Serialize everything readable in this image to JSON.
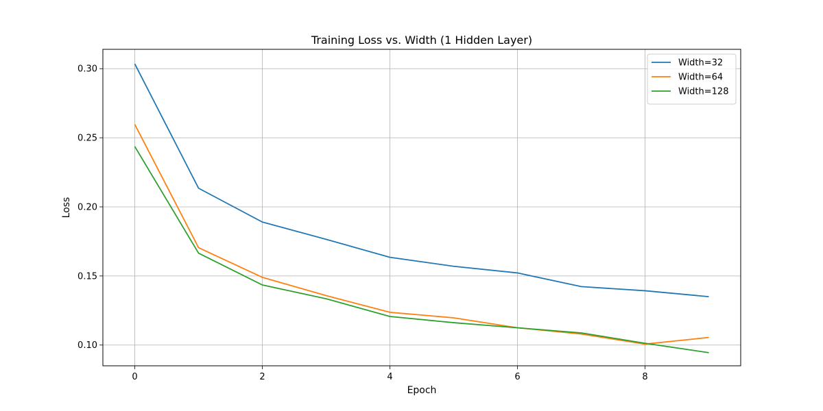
{
  "chart_data": {
    "type": "line",
    "title": "Training Loss vs. Width (1 Hidden Layer)",
    "xlabel": "Epoch",
    "ylabel": "Loss",
    "xlim": [
      -0.5,
      9.5
    ],
    "ylim": [
      0.085,
      0.314
    ],
    "xticks": [
      0,
      2,
      4,
      6,
      8
    ],
    "xtick_labels": [
      "0",
      "2",
      "4",
      "6",
      "8"
    ],
    "yticks": [
      0.1,
      0.15,
      0.2,
      0.25,
      0.3
    ],
    "ytick_labels": [
      "0.10",
      "0.15",
      "0.20",
      "0.25",
      "0.30"
    ],
    "grid": true,
    "legend_position": "top-right",
    "x": [
      0,
      1,
      2,
      3,
      4,
      5,
      6,
      7,
      8,
      9
    ],
    "series": [
      {
        "name": "Width=32",
        "color": "#1f77b4",
        "values": [
          0.3035,
          0.2135,
          0.189,
          0.1765,
          0.1635,
          0.157,
          0.1522,
          0.1423,
          0.1393,
          0.135
        ]
      },
      {
        "name": "Width=64",
        "color": "#ff7f0e",
        "values": [
          0.2597,
          0.1705,
          0.149,
          0.1358,
          0.1237,
          0.1197,
          0.1125,
          0.108,
          0.1007,
          0.1055
        ]
      },
      {
        "name": "Width=128",
        "color": "#2ca02c",
        "values": [
          0.2437,
          0.1665,
          0.1435,
          0.1335,
          0.1207,
          0.1162,
          0.1125,
          0.1088,
          0.1013,
          0.0945
        ]
      }
    ]
  }
}
